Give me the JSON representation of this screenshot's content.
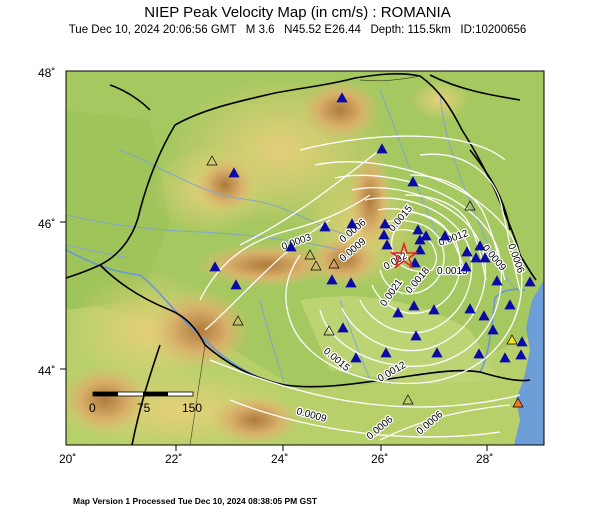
{
  "header": {
    "title": "NIEP Peak Velocity Map (in cm/s) : ROMANIA",
    "date": "Tue Dec 10, 2024 20:06:56 GMT",
    "magnitude": "M 3.6",
    "location": "N45.52 E26.44",
    "depth": "Depth: 115.5km",
    "id": "ID:10200656"
  },
  "map": {
    "lat_labels": [
      "48˚",
      "46˚",
      "44˚"
    ],
    "lon_labels": [
      "20˚",
      "22˚",
      "24˚",
      "26˚",
      "28˚"
    ],
    "scale_labels": [
      "0",
      "75",
      "150"
    ],
    "contour_labels": [
      "0.0003",
      "0.0006",
      "0.0009",
      "0.0015",
      "0.0012",
      "0.0009",
      "0.0006",
      "0.002",
      "0.0015",
      "0.0021",
      "0.0018",
      "0.0015",
      "0.0012",
      "0.0009",
      "0.0006",
      "0.0006"
    ],
    "epicenter_icon": "star-icon",
    "station_icon": "triangle-icon",
    "colors": {
      "sea": "#6d9ed8",
      "contour": "#ffffff",
      "epicenter": "#e8202a",
      "station": "#0a0aa8"
    }
  },
  "footer": {
    "text": "Map Version 1 Processed Tue Dec 10, 2024 08:38:05 PM GST"
  }
}
